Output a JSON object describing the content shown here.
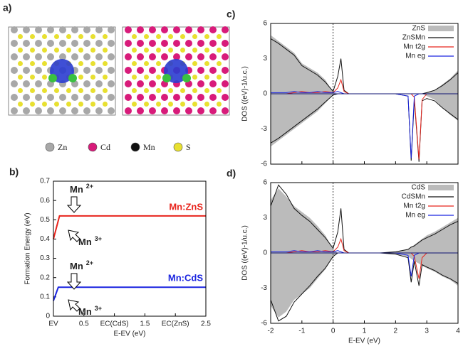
{
  "figure": {
    "panel_label": "a)",
    "atoms": [
      {
        "name": "Zn",
        "color": "#a8a8a8"
      },
      {
        "name": "Cd",
        "color": "#d81b7a"
      },
      {
        "name": "Mn",
        "color": "#111111"
      },
      {
        "name": "S",
        "color": "#e8e030"
      }
    ]
  },
  "chart_data": [
    {
      "type": "line",
      "panel_label": "b)",
      "xlabel": "E-EV (eV)",
      "ylabel": "Formation Energy (eV)",
      "xlim": [
        0,
        2.5
      ],
      "ylim": [
        0,
        0.7
      ],
      "xticks": [
        {
          "value": 0,
          "label": "EV"
        },
        0.5,
        {
          "value": 1,
          "label": "EC(CdS)"
        },
        1.5,
        {
          "value": 2,
          "label": "EC(ZnS)"
        },
        2.5
      ],
      "yticks": [
        0,
        0.1,
        0.2,
        0.3,
        0.4,
        0.5,
        0.6,
        0.7
      ],
      "series": [
        {
          "name": "Mn:ZnS",
          "color": "#e8241c",
          "x": [
            0,
            0.1,
            2.5
          ],
          "values": [
            0.4,
            0.52,
            0.52
          ]
        },
        {
          "name": "Mn:CdS",
          "color": "#1a24e0",
          "x": [
            0,
            0.08,
            2.5
          ],
          "values": [
            0.08,
            0.15,
            0.15
          ]
        }
      ],
      "annotations": [
        {
          "text": "Mn",
          "sup": "2+"
        },
        {
          "text": "Mn",
          "sup": "3+"
        },
        {
          "text": "Mn",
          "sup": "2+"
        },
        {
          "text": "Mn",
          "sup": "3+"
        }
      ]
    },
    {
      "type": "area",
      "panel_label": "c)",
      "ylabel": "DOS ((eV)-1/u.c.)",
      "xlim": [
        -2,
        4
      ],
      "ylim": [
        -6,
        6
      ],
      "xticks": [
        -2,
        -1,
        0,
        1,
        2,
        3,
        4
      ],
      "yticks": [
        -6,
        -3,
        0,
        3,
        6
      ],
      "show_xtick_labels": false,
      "x": [
        -2,
        -1.75,
        -1.5,
        -1.25,
        -1,
        -0.75,
        -0.5,
        -0.25,
        0,
        0.15,
        0.25,
        0.35,
        0.5,
        1,
        1.5,
        2,
        2.4,
        2.5,
        2.6,
        2.75,
        2.85,
        3,
        3.25,
        3.5,
        3.75,
        4
      ],
      "series": [
        {
          "name": "ZnS",
          "color": "#bbbbbb",
          "fill": true,
          "values": [
            5,
            4.5,
            4,
            3.5,
            2.6,
            2.2,
            1.8,
            1.2,
            0.1,
            0,
            0,
            0,
            0,
            0,
            0,
            0,
            0,
            0,
            0,
            0,
            0,
            0.1,
            0.3,
            0.8,
            1.3,
            2
          ],
          "values_down": [
            -4.5,
            -4,
            -3.5,
            -3,
            -2.5,
            -2,
            -1.5,
            -0.8,
            -0.1,
            0,
            0,
            0,
            0,
            0,
            0,
            0,
            0,
            0,
            0,
            0,
            0,
            -0.2,
            -0.5,
            -1.2,
            -1.8,
            -2.3
          ]
        },
        {
          "name": "ZnSMn",
          "color": "#111111",
          "values": [
            4.7,
            4.3,
            3.8,
            3.3,
            2.4,
            2,
            1.6,
            1,
            0.2,
            1.5,
            3,
            0.3,
            0,
            0,
            0,
            0,
            0,
            0,
            0,
            0,
            0,
            0.1,
            0.3,
            0.7,
            1.2,
            1.8
          ],
          "values_down": [
            -4.2,
            -3.8,
            -3.3,
            -2.8,
            -2.3,
            -1.8,
            -1.3,
            -0.7,
            -0.1,
            0,
            0,
            0,
            0,
            0,
            0,
            0,
            -0.2,
            -5.7,
            -0.5,
            -5.8,
            -0.6,
            -0.4,
            -0.6,
            -1.2,
            -1.7,
            -2.2
          ]
        },
        {
          "name": "Mn t2g",
          "color": "#e8241c",
          "values": [
            0,
            0,
            0,
            0.1,
            0.2,
            0.1,
            0.1,
            0.2,
            0.1,
            0.5,
            1.2,
            0.2,
            0,
            0,
            0,
            0,
            0,
            0,
            0,
            0,
            0,
            0,
            0,
            0,
            0,
            0
          ],
          "values_down": [
            0,
            0,
            0,
            0,
            0,
            0,
            0,
            0,
            0,
            0,
            0,
            0,
            0,
            0,
            0,
            0,
            0,
            0,
            -0.3,
            -5.6,
            -0.5,
            0,
            0,
            0,
            0,
            0
          ]
        },
        {
          "name": "Mn eg",
          "color": "#1a24e0",
          "values": [
            0.1,
            0.1,
            0.1,
            0.2,
            0.1,
            0.1,
            0.2,
            0.1,
            0.1,
            0.2,
            0.1,
            0,
            0,
            0,
            0,
            0,
            0,
            0,
            0,
            0,
            0,
            0,
            0,
            0,
            0,
            0
          ],
          "values_down": [
            0,
            0,
            0,
            0,
            0,
            0,
            0,
            0,
            0,
            0,
            0,
            0,
            0,
            0,
            0,
            0,
            -0.2,
            -5.5,
            -0.2,
            0,
            0,
            0,
            0,
            0,
            0,
            0
          ]
        }
      ]
    },
    {
      "type": "area",
      "panel_label": "d)",
      "xlabel": "E-EV (eV)",
      "ylabel": "DOS ((eV)-1/u.c.)",
      "xlim": [
        -2,
        4
      ],
      "ylim": [
        -6,
        6
      ],
      "xticks": [
        -2,
        -1,
        0,
        1,
        2,
        3,
        4
      ],
      "yticks": [
        -6,
        -3,
        0,
        3,
        6
      ],
      "show_xtick_labels": true,
      "x": [
        -2,
        -1.75,
        -1.5,
        -1.25,
        -1,
        -0.75,
        -0.5,
        -0.25,
        0,
        0.15,
        0.25,
        0.35,
        0.5,
        1,
        1.5,
        2,
        2.4,
        2.5,
        2.6,
        2.75,
        2.85,
        3,
        3.25,
        3.5,
        3.75,
        4
      ],
      "series": [
        {
          "name": "CdS",
          "color": "#bbbbbb",
          "fill": true,
          "values": [
            4.5,
            5.5,
            4.8,
            4,
            3.5,
            3,
            2.3,
            1.5,
            0.3,
            0,
            0,
            0,
            0,
            0,
            0,
            0.1,
            0.3,
            0.5,
            0.7,
            1,
            1.2,
            1.5,
            1.8,
            2.2,
            2.6,
            3
          ],
          "values_down": [
            -4.5,
            -5.5,
            -5,
            -4,
            -3.5,
            -3,
            -2.2,
            -1.4,
            -0.3,
            0,
            0,
            0,
            0,
            0,
            0,
            -0.1,
            -0.3,
            -0.5,
            -0.7,
            -0.9,
            -1.1,
            -1.3,
            -1.6,
            -2,
            -2.3,
            -2.8
          ]
        },
        {
          "name": "CdSMn",
          "color": "#111111",
          "values": [
            4,
            5.8,
            5,
            3.8,
            3.2,
            2.7,
            2,
            1.3,
            0.4,
            1.8,
            3.8,
            0.3,
            0,
            0,
            0,
            0.1,
            0.3,
            0.5,
            0.6,
            0.9,
            1.1,
            1.3,
            1.6,
            2,
            2.4,
            2.7
          ],
          "values_down": [
            -4,
            -5.8,
            -5.4,
            -4.2,
            -3.5,
            -2.8,
            -2,
            -1.3,
            -0.3,
            0,
            0,
            0,
            0,
            0,
            0,
            -0.1,
            -0.4,
            -2.5,
            -0.7,
            -2.8,
            -1,
            -1.2,
            -1.5,
            -1.9,
            -2.2,
            -2.6
          ]
        },
        {
          "name": "Mn t2g",
          "color": "#e8241c",
          "values": [
            0,
            0,
            0,
            0.1,
            0.2,
            0.1,
            0.1,
            0.2,
            0.1,
            0.5,
            1.2,
            0.2,
            0,
            0,
            0,
            0,
            0,
            0,
            0,
            0,
            0,
            0,
            0,
            0,
            0,
            0
          ],
          "values_down": [
            0,
            0,
            0,
            0,
            0,
            0,
            0,
            0,
            0,
            0,
            0,
            0,
            0,
            0,
            0,
            0,
            0,
            0,
            -0.3,
            -2.2,
            -0.4,
            0,
            0,
            0,
            0,
            0
          ]
        },
        {
          "name": "Mn eg",
          "color": "#1a24e0",
          "values": [
            0.1,
            0.1,
            0.1,
            0.2,
            0.1,
            0.1,
            0.2,
            0.1,
            0.1,
            0.2,
            0.1,
            0,
            0,
            0,
            0,
            0,
            0,
            0,
            0,
            0,
            0,
            0,
            0,
            0,
            0,
            0
          ],
          "values_down": [
            0,
            0,
            0,
            0,
            0,
            0,
            0,
            0,
            0,
            0,
            0,
            0,
            0,
            0,
            0,
            0,
            -0.2,
            -2,
            -0.2,
            0,
            0,
            0,
            0,
            0,
            0,
            0
          ]
        }
      ]
    }
  ]
}
